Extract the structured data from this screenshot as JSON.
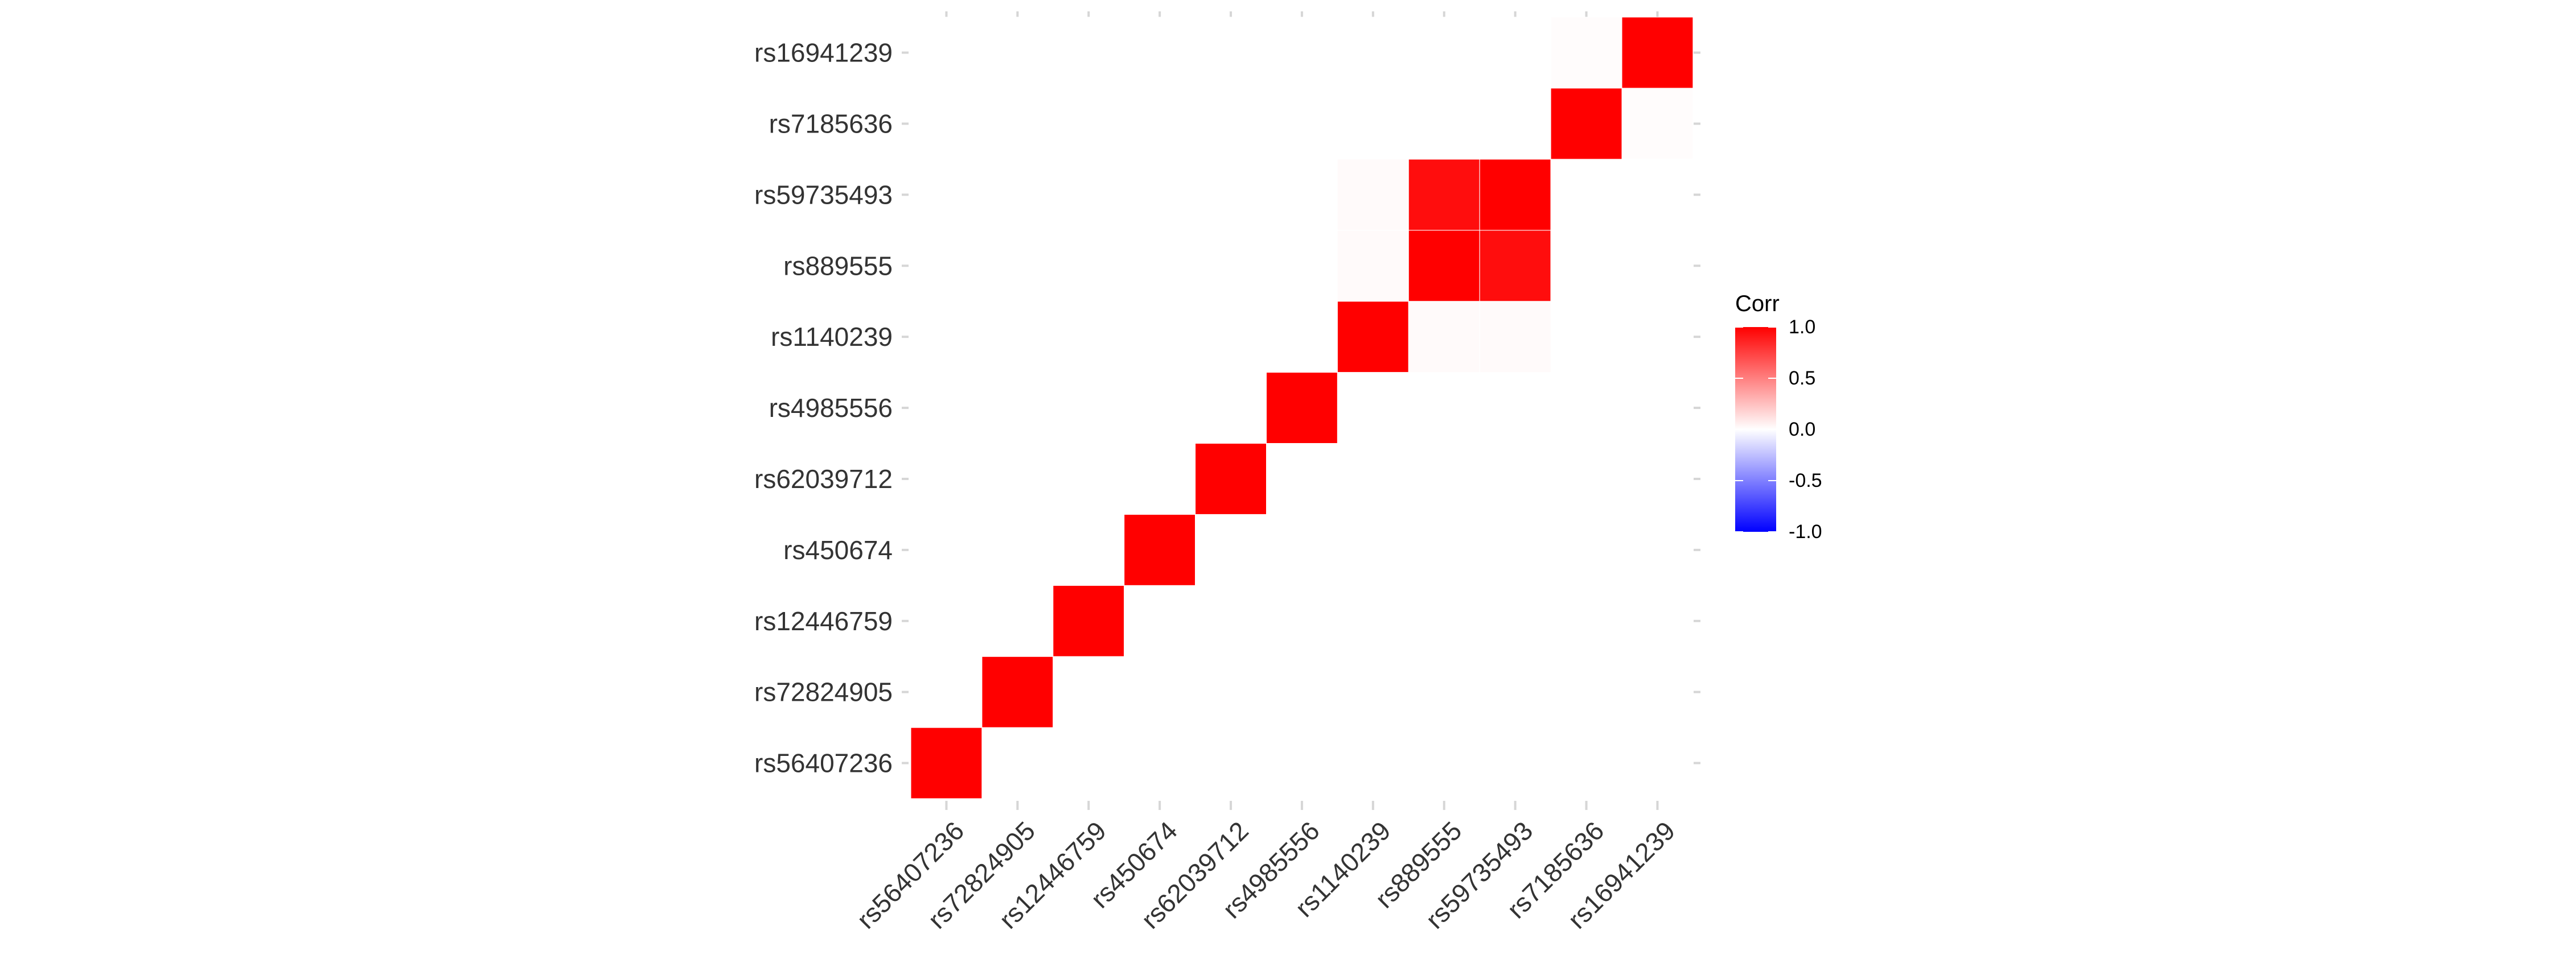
{
  "chart_data": {
    "type": "heatmap",
    "title": "",
    "xlabel": "",
    "ylabel": "",
    "variables": [
      "rs56407236",
      "rs72824905",
      "rs12446759",
      "rs450674",
      "rs62039712",
      "rs4985556",
      "rs1140239",
      "rs889555",
      "rs59735493",
      "rs7185636",
      "rs16941239"
    ],
    "triangle": "upper",
    "matrix": [
      [
        1,
        0,
        0,
        0,
        0,
        0,
        0,
        0,
        0,
        0,
        0
      ],
      [
        0,
        1,
        0,
        0,
        0,
        0,
        0,
        0,
        0,
        0,
        0
      ],
      [
        0,
        0,
        1,
        0,
        0,
        0,
        0,
        0,
        0,
        0,
        0
      ],
      [
        0,
        0,
        0,
        1,
        0,
        0,
        0,
        0,
        0,
        0,
        0
      ],
      [
        0,
        0,
        0,
        0,
        1,
        0,
        0,
        0,
        0,
        0,
        0
      ],
      [
        0,
        0,
        0,
        0,
        0,
        1,
        0,
        0,
        0,
        0,
        0
      ],
      [
        0,
        0,
        0,
        0,
        0,
        0,
        1,
        0.02,
        0.02,
        0,
        0
      ],
      [
        0,
        0,
        0,
        0,
        0,
        0,
        0.02,
        1,
        0.95,
        0,
        0
      ],
      [
        0,
        0,
        0,
        0,
        0,
        0,
        0.02,
        0.95,
        1,
        0,
        0
      ],
      [
        0,
        0,
        0,
        0,
        0,
        0,
        0,
        0,
        0,
        1,
        0.01
      ],
      [
        0,
        0,
        0,
        0,
        0,
        0,
        0,
        0,
        0,
        0.01,
        1
      ]
    ],
    "color_scale": {
      "low": "#0000ff",
      "mid": "#ffffff",
      "high": "#ff0000",
      "limits": [
        -1,
        1
      ]
    },
    "legend": {
      "title": "Corr",
      "ticks": [
        "1.0",
        "0.5",
        "0.0",
        "-0.5",
        "-1.0"
      ],
      "position": "right"
    },
    "grid": false
  }
}
